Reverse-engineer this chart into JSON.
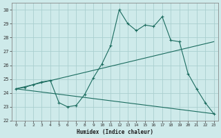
{
  "xlabel": "Humidex (Indice chaleur)",
  "background_color": "#ceeaea",
  "grid_color": "#aacfcf",
  "line_color": "#1a6b5e",
  "xlim": [
    -0.5,
    23.5
  ],
  "ylim": [
    22,
    30.5
  ],
  "yticks": [
    22,
    23,
    24,
    25,
    26,
    27,
    28,
    29,
    30
  ],
  "xticks": [
    0,
    1,
    2,
    3,
    4,
    5,
    6,
    7,
    8,
    9,
    10,
    11,
    12,
    13,
    14,
    15,
    16,
    17,
    18,
    19,
    20,
    21,
    22,
    23
  ],
  "series": [
    {
      "x": [
        0,
        1,
        2,
        3,
        4,
        5,
        6,
        7,
        8,
        9,
        10,
        11,
        12,
        13,
        14,
        15,
        16,
        17,
        18,
        19,
        20,
        21,
        22,
        23
      ],
      "y": [
        24.3,
        24.4,
        24.6,
        24.8,
        24.9,
        23.3,
        23.0,
        23.1,
        23.9,
        25.1,
        26.1,
        27.4,
        30.0,
        29.0,
        28.5,
        28.9,
        28.8,
        29.5,
        27.8,
        27.7,
        25.4,
        24.3,
        23.3,
        22.5
      ]
    },
    {
      "x": [
        0,
        23
      ],
      "y": [
        24.3,
        27.7
      ]
    },
    {
      "x": [
        0,
        23
      ],
      "y": [
        24.3,
        22.5
      ]
    }
  ]
}
